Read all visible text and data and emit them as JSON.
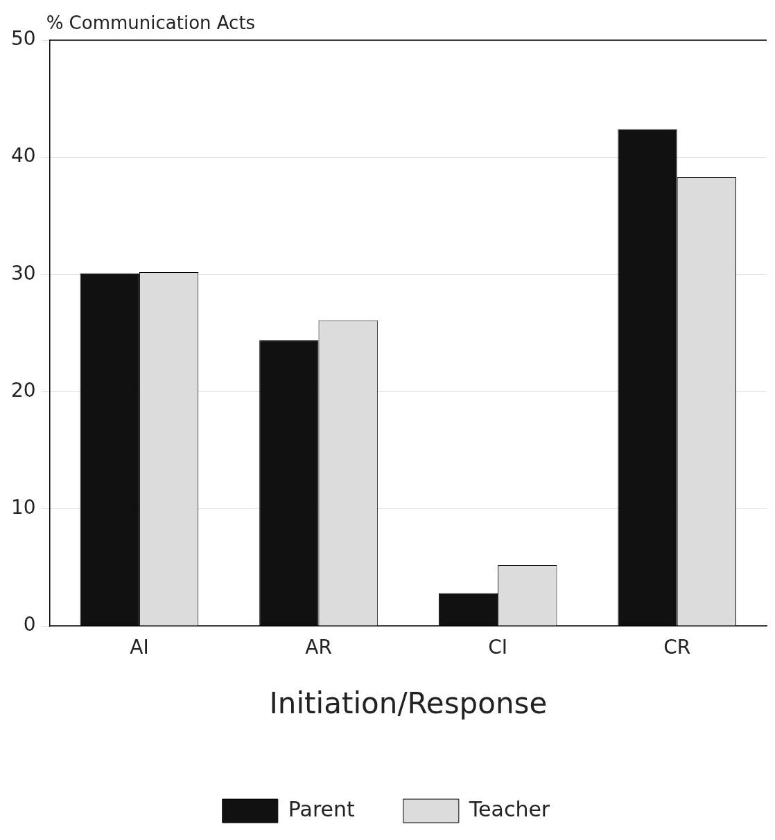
{
  "chart_data": {
    "type": "bar",
    "ylabel": "% Communication Acts",
    "xlabel": "Initiation/Response",
    "categories": [
      "AI",
      "AR",
      "CI",
      "CR"
    ],
    "series": [
      {
        "name": "Parent",
        "color": "#111111",
        "values": [
          30.1,
          24.4,
          2.8,
          42.4
        ]
      },
      {
        "name": "Teacher",
        "color": "#dcdcdc",
        "values": [
          30.2,
          26.1,
          5.2,
          38.3
        ]
      }
    ],
    "ylim": [
      0,
      50
    ],
    "yticks": [
      0,
      10,
      20,
      30,
      40,
      50
    ],
    "grid": "y",
    "legend": "bottom"
  }
}
